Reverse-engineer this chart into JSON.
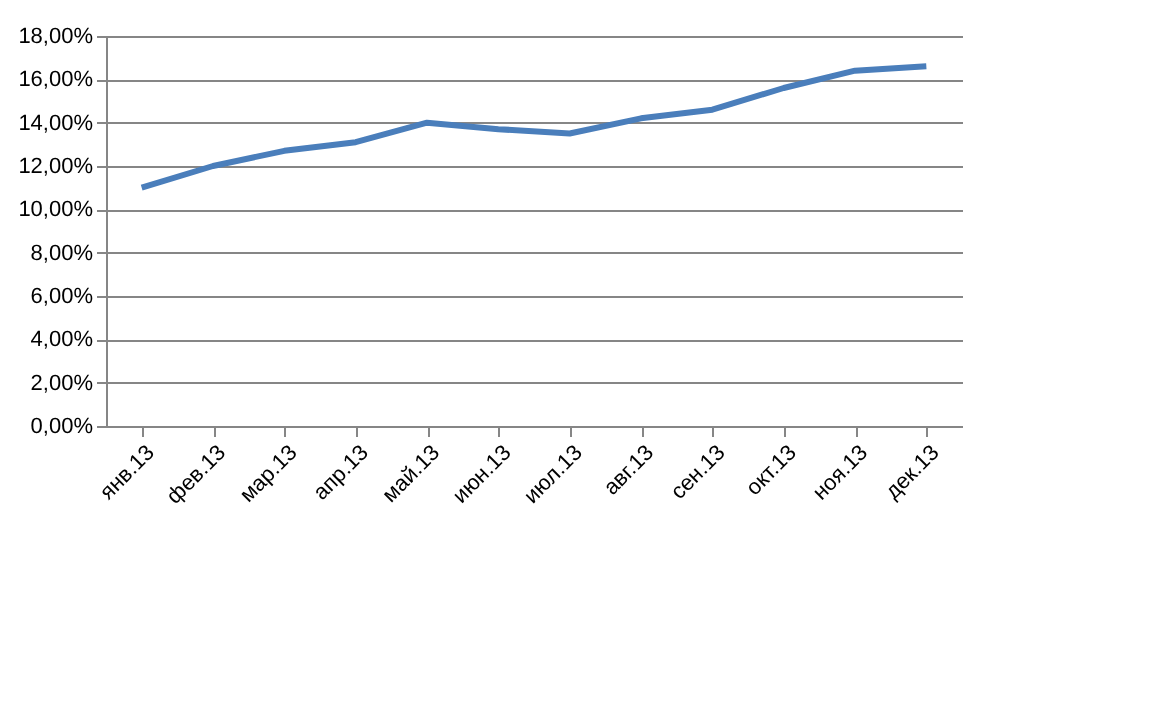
{
  "chart_data": {
    "type": "line",
    "categories": [
      "янв.13",
      "фев.13",
      "мар.13",
      "апр.13",
      "май.13",
      "июн.13",
      "июл.13",
      "авг.13",
      "сен.13",
      "окт.13",
      "ноя.13",
      "дек.13"
    ],
    "series": [
      {
        "color": "#4a7ebb",
        "values": [
          11.0,
          12.0,
          12.7,
          13.1,
          14.0,
          13.7,
          13.5,
          14.2,
          14.6,
          15.6,
          16.4,
          16.6
        ]
      }
    ],
    "ylim": [
      0,
      18
    ],
    "yticks": [
      {
        "value": 0,
        "label": "0,00%"
      },
      {
        "value": 2,
        "label": "2,00%"
      },
      {
        "value": 4,
        "label": "4,00%"
      },
      {
        "value": 6,
        "label": "6,00%"
      },
      {
        "value": 8,
        "label": "8,00%"
      },
      {
        "value": 10,
        "label": "10,00%"
      },
      {
        "value": 12,
        "label": "12,00%"
      },
      {
        "value": 14,
        "label": "14,00%"
      },
      {
        "value": 16,
        "label": "16,00%"
      },
      {
        "value": 18,
        "label": "18,00%"
      }
    ],
    "grid": "y",
    "marker": "none",
    "line_style": "solid"
  }
}
